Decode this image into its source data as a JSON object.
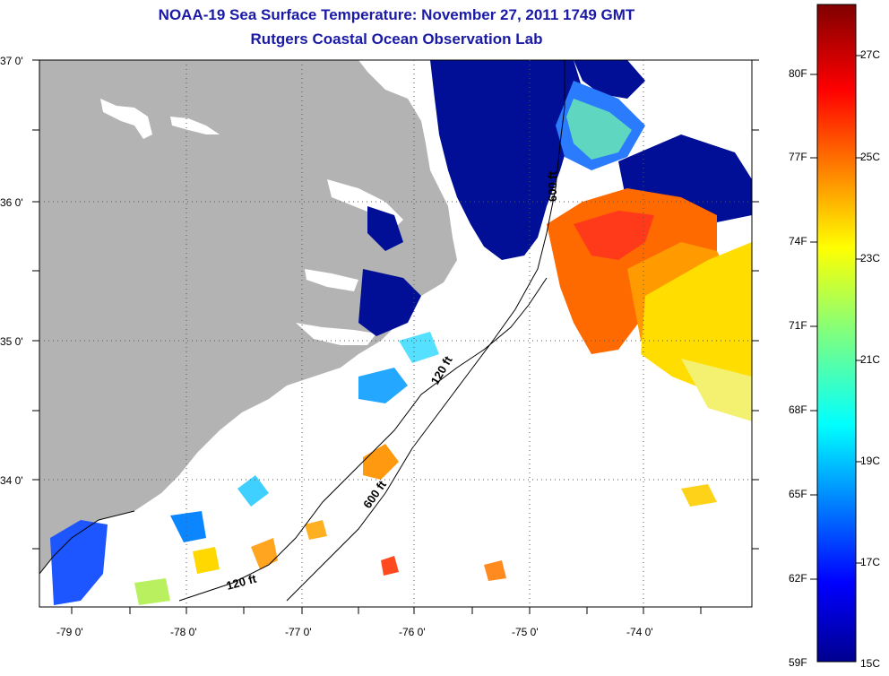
{
  "title": {
    "line1": "NOAA-19 Sea Surface Temperature:  November 27, 2011 1749 GMT",
    "line2": "Rutgers Coastal Ocean Observation Lab"
  },
  "map": {
    "lat_labels": [
      "37 0'",
      "36 0'",
      "35 0'",
      "34 0'"
    ],
    "lon_labels": [
      "-79 0'",
      "-78 0'",
      "-77 0'",
      "-76 0'",
      "-75 0'",
      "-74 0'"
    ],
    "contour_labels": [
      "600 ft",
      "120 ft",
      "600 ft",
      "120 ft"
    ],
    "colors": {
      "land": "#b3b3b3",
      "cold": "#000f96",
      "cloud": "#ffffff"
    }
  },
  "colorbar": {
    "fahrenheit": [
      "80F",
      "77F",
      "74F",
      "71F",
      "68F",
      "65F",
      "62F",
      "59F"
    ],
    "celsius": [
      "27C",
      "25C",
      "23C",
      "21C",
      "19C",
      "17C",
      "15C"
    ]
  }
}
